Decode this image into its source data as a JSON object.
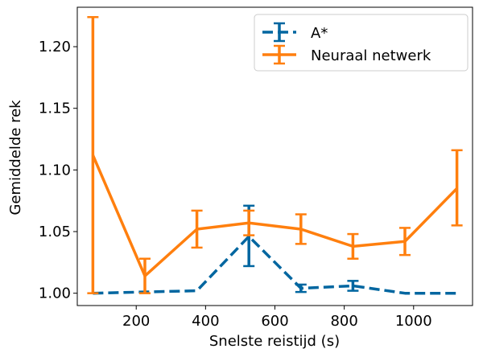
{
  "chart_data": {
    "type": "line",
    "xlabel": "Snelste reistijd (s)",
    "ylabel": "Gemiddelde rek",
    "xlim": [
      30,
      1170
    ],
    "ylim": [
      0.99,
      1.232
    ],
    "xticks": [
      200,
      400,
      600,
      800,
      1000
    ],
    "yticks": [
      1.0,
      1.05,
      1.1,
      1.15,
      1.2
    ],
    "xtick_labels": [
      "200",
      "400",
      "600",
      "800",
      "1000"
    ],
    "ytick_labels": [
      "1.00",
      "1.05",
      "1.10",
      "1.15",
      "1.20"
    ],
    "grid": false,
    "legend_position": "top-right",
    "series": [
      {
        "name": "A*",
        "color": "#0066a0",
        "linestyle": "dashed",
        "x": [
          75,
          225,
          375,
          525,
          675,
          825,
          975,
          1125
        ],
        "y": [
          1.0,
          1.001,
          1.002,
          1.046,
          1.004,
          1.006,
          1.0,
          1.0
        ],
        "yerr_low": [
          0.0,
          0.0,
          0.0,
          0.024,
          0.003,
          0.004,
          0.0,
          0.0
        ],
        "yerr_high": [
          0.0,
          0.0,
          0.0,
          0.025,
          0.003,
          0.004,
          0.0,
          0.0
        ]
      },
      {
        "name": "Neuraal netwerk",
        "color": "#ff7f0e",
        "linestyle": "solid",
        "x": [
          75,
          225,
          375,
          525,
          675,
          825,
          975,
          1125
        ],
        "y": [
          1.112,
          1.014,
          1.052,
          1.057,
          1.052,
          1.038,
          1.042,
          1.085
        ],
        "yerr_low": [
          0.112,
          0.014,
          0.015,
          0.01,
          0.012,
          0.01,
          0.011,
          0.03
        ],
        "yerr_high": [
          0.112,
          0.014,
          0.015,
          0.01,
          0.012,
          0.01,
          0.011,
          0.031
        ]
      }
    ]
  }
}
